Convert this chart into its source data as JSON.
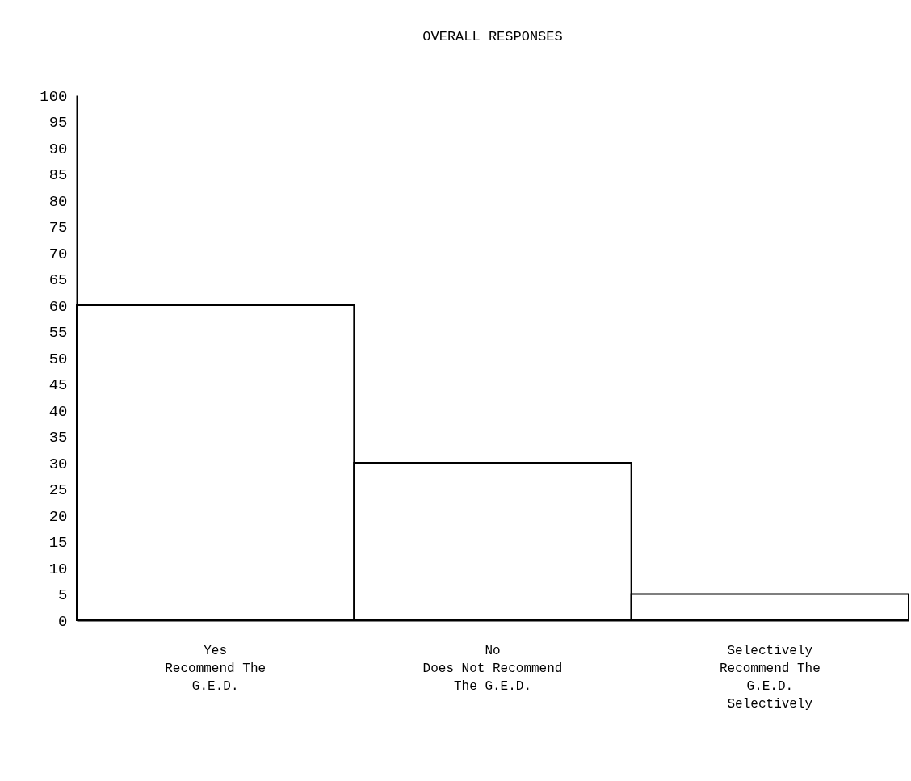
{
  "chart_data": {
    "type": "bar",
    "title": "OVERALL RESPONSES",
    "categories": [
      "Yes\nRecommend The\nG.E.D.",
      "No\nDoes Not Recommend\nThe G.E.D.",
      "Selectively\nRecommend The\nG.E.D.\nSelectively"
    ],
    "values": [
      60,
      30,
      5
    ],
    "color": "#ffffff",
    "ylim": [
      0,
      100
    ],
    "yticks": [
      0,
      5,
      10,
      15,
      20,
      25,
      30,
      35,
      40,
      45,
      50,
      55,
      60,
      65,
      70,
      75,
      80,
      85,
      90,
      95,
      100
    ],
    "grid": false
  }
}
